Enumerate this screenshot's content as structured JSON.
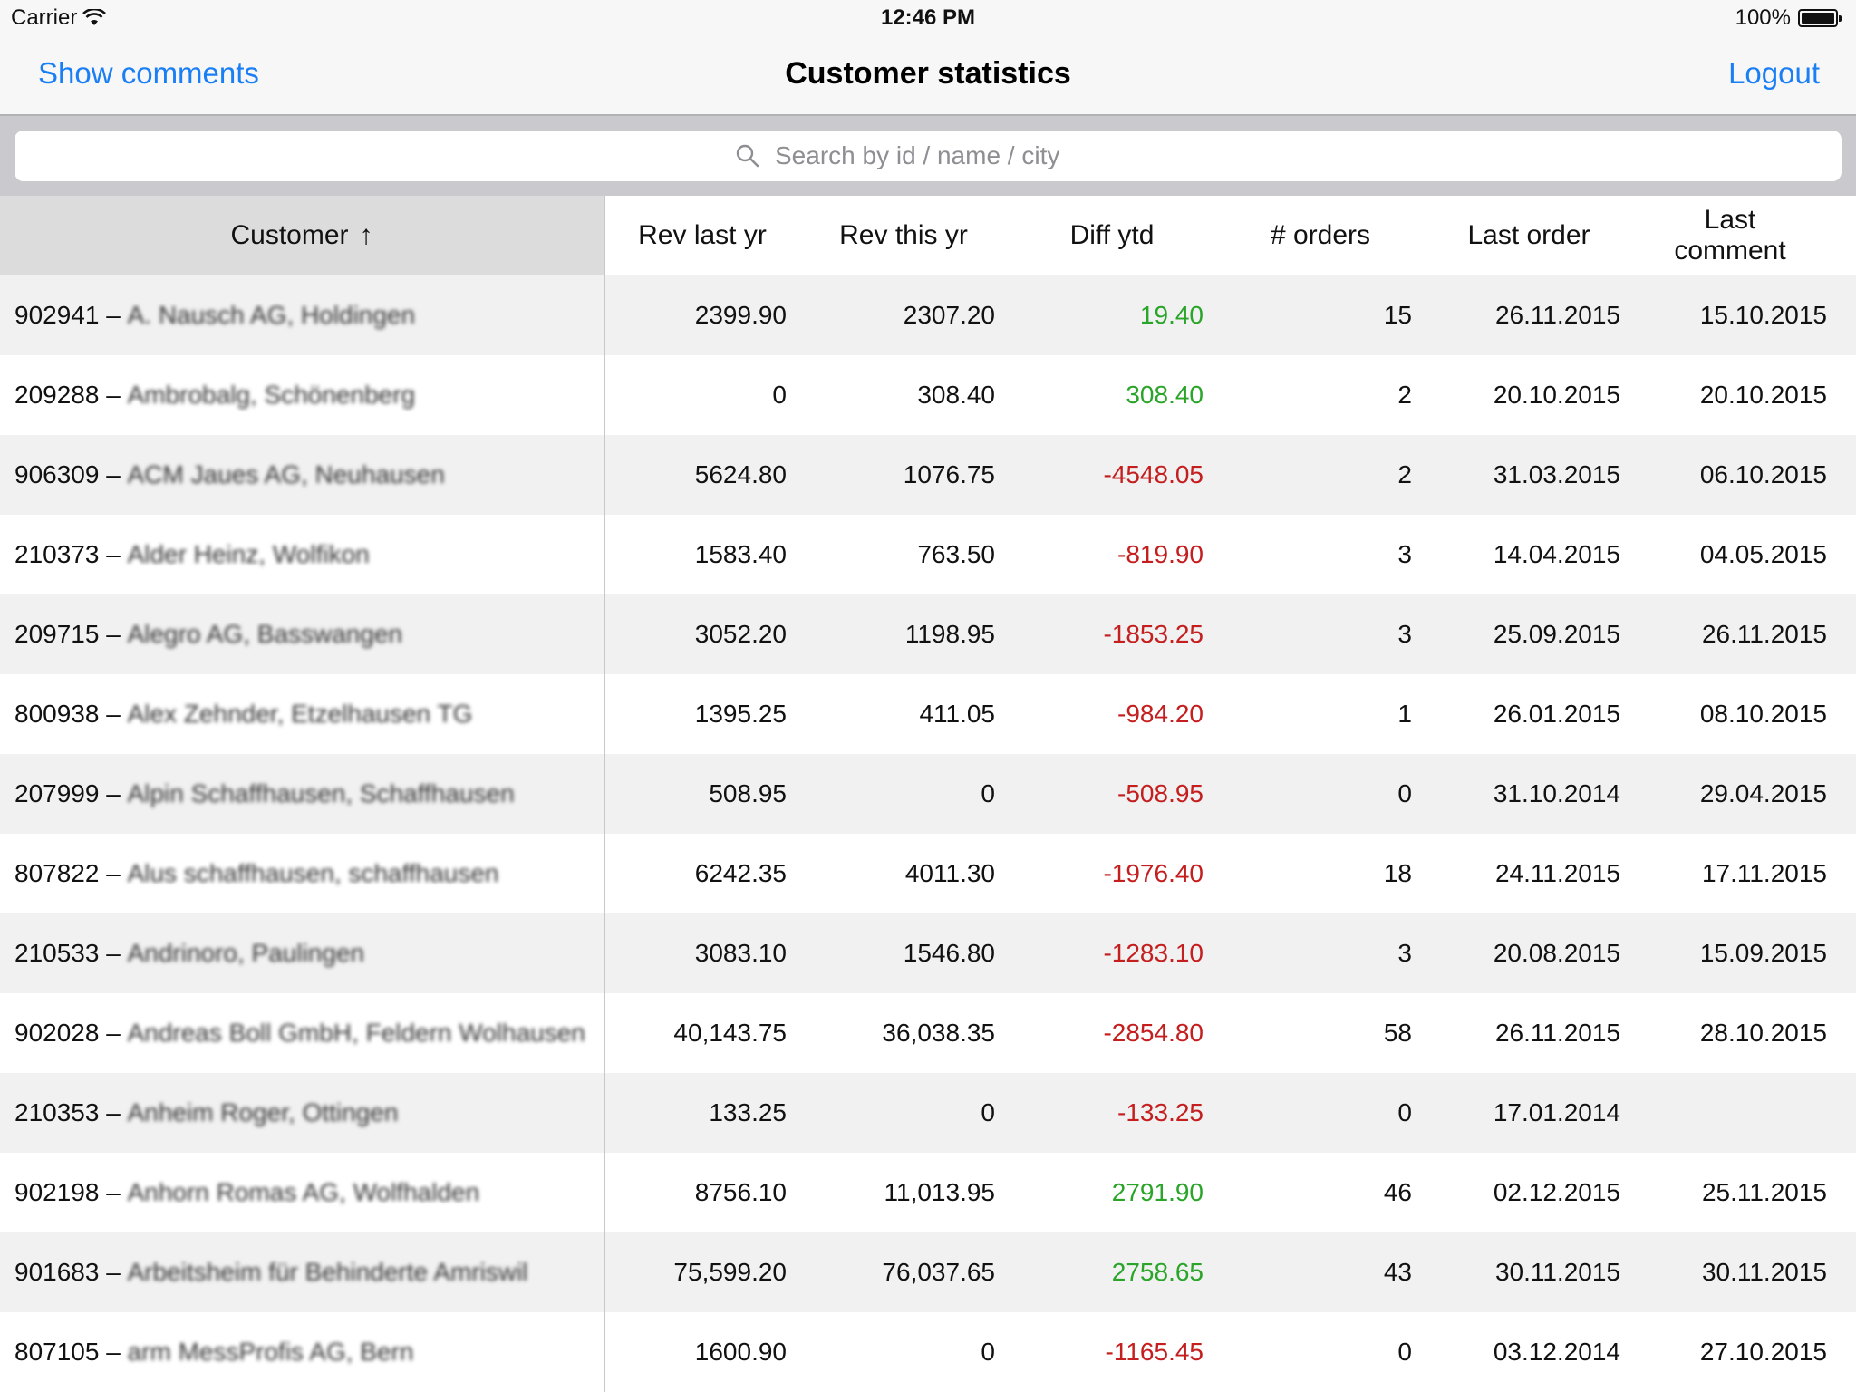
{
  "status": {
    "carrier": "Carrier",
    "time": "12:46 PM",
    "battery": "100%"
  },
  "nav": {
    "left": "Show comments",
    "title": "Customer statistics",
    "right": "Logout"
  },
  "search": {
    "placeholder": "Search by id / name / city"
  },
  "columns": {
    "customer": "Customer",
    "sort_arrow": "↑",
    "rev_last": "Rev last yr",
    "rev_this": "Rev this yr",
    "diff": "Diff ytd",
    "orders": "# orders",
    "last_order": "Last order",
    "last_comment_1": "Last",
    "last_comment_2": "comment"
  },
  "rows": [
    {
      "id": "902941",
      "name": "A. Nausch AG, Holdingen",
      "rev_last": "2399.90",
      "rev_this": "2307.20",
      "diff": "19.40",
      "orders": "15",
      "last_order": "26.11.2015",
      "last_comment": "15.10.2015"
    },
    {
      "id": "209288",
      "name": "Ambrobalg, Schönenberg",
      "rev_last": "0",
      "rev_this": "308.40",
      "diff": "308.40",
      "orders": "2",
      "last_order": "20.10.2015",
      "last_comment": "20.10.2015"
    },
    {
      "id": "906309",
      "name": "ACM Jaues AG, Neuhausen",
      "rev_last": "5624.80",
      "rev_this": "1076.75",
      "diff": "-4548.05",
      "orders": "2",
      "last_order": "31.03.2015",
      "last_comment": "06.10.2015"
    },
    {
      "id": "210373",
      "name": "Alder Heinz, Wolfikon",
      "rev_last": "1583.40",
      "rev_this": "763.50",
      "diff": "-819.90",
      "orders": "3",
      "last_order": "14.04.2015",
      "last_comment": "04.05.2015"
    },
    {
      "id": "209715",
      "name": "Alegro AG, Basswangen",
      "rev_last": "3052.20",
      "rev_this": "1198.95",
      "diff": "-1853.25",
      "orders": "3",
      "last_order": "25.09.2015",
      "last_comment": "26.11.2015"
    },
    {
      "id": "800938",
      "name": "Alex Zehnder, Etzelhausen TG",
      "rev_last": "1395.25",
      "rev_this": "411.05",
      "diff": "-984.20",
      "orders": "1",
      "last_order": "26.01.2015",
      "last_comment": "08.10.2015"
    },
    {
      "id": "207999",
      "name": "Alpin Schaffhausen, Schaffhausen",
      "rev_last": "508.95",
      "rev_this": "0",
      "diff": "-508.95",
      "orders": "0",
      "last_order": "31.10.2014",
      "last_comment": "29.04.2015"
    },
    {
      "id": "807822",
      "name": "Alus schaffhausen, schaffhausen",
      "rev_last": "6242.35",
      "rev_this": "4011.30",
      "diff": "-1976.40",
      "orders": "18",
      "last_order": "24.11.2015",
      "last_comment": "17.11.2015"
    },
    {
      "id": "210533",
      "name": "Andrinoro, Paulingen",
      "rev_last": "3083.10",
      "rev_this": "1546.80",
      "diff": "-1283.10",
      "orders": "3",
      "last_order": "20.08.2015",
      "last_comment": "15.09.2015"
    },
    {
      "id": "902028",
      "name": "Andreas Boll GmbH, Feldern Wolhausen",
      "rev_last": "40,143.75",
      "rev_this": "36,038.35",
      "diff": "-2854.80",
      "orders": "58",
      "last_order": "26.11.2015",
      "last_comment": "28.10.2015"
    },
    {
      "id": "210353",
      "name": "Anheim Roger, Ottingen",
      "rev_last": "133.25",
      "rev_this": "0",
      "diff": "-133.25",
      "orders": "0",
      "last_order": "17.01.2014",
      "last_comment": ""
    },
    {
      "id": "902198",
      "name": "Anhorn Romas AG, Wolfhalden",
      "rev_last": "8756.10",
      "rev_this": "11,013.95",
      "diff": "2791.90",
      "orders": "46",
      "last_order": "02.12.2015",
      "last_comment": "25.11.2015"
    },
    {
      "id": "901683",
      "name": "Arbeitsheim für Behinderte Amriswil",
      "rev_last": "75,599.20",
      "rev_this": "76,037.65",
      "diff": "2758.65",
      "orders": "43",
      "last_order": "30.11.2015",
      "last_comment": "30.11.2015"
    },
    {
      "id": "807105",
      "name": "arm MessProfis AG, Bern",
      "rev_last": "1600.90",
      "rev_this": "0",
      "diff": "-1165.45",
      "orders": "0",
      "last_order": "03.12.2014",
      "last_comment": "27.10.2015"
    }
  ]
}
